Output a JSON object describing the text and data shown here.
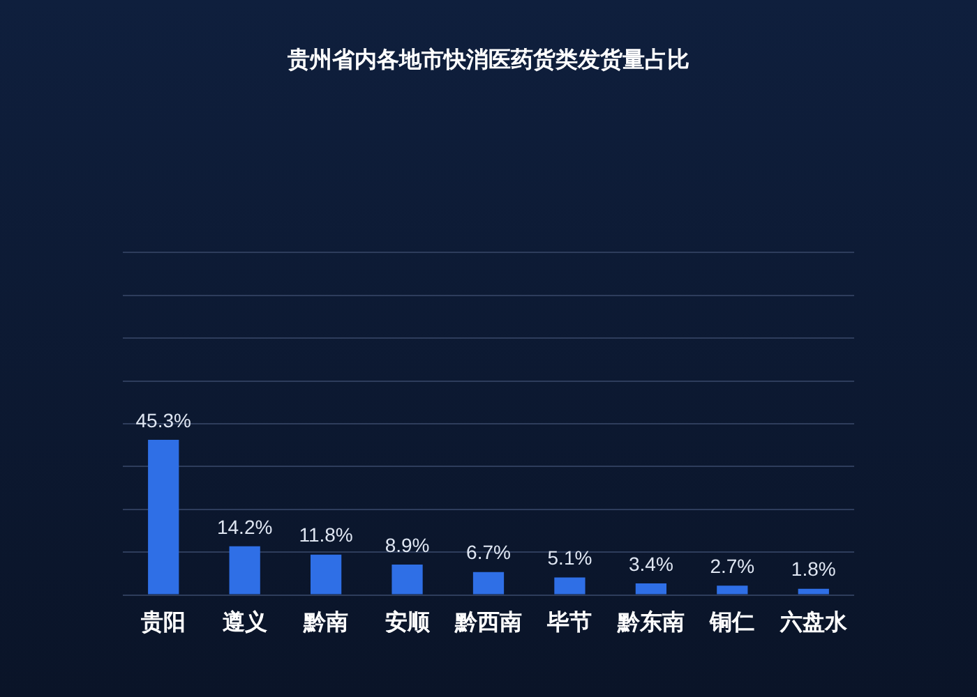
{
  "chart_data": {
    "type": "bar",
    "title": "贵州省内各地市快消医药货类发货量占比",
    "categories": [
      "贵阳",
      "遵义",
      "黔南",
      "安顺",
      "黔西南",
      "毕节",
      "黔东南",
      "铜仁",
      "六盘水"
    ],
    "values": [
      45.3,
      14.2,
      11.8,
      8.9,
      6.7,
      5.1,
      3.4,
      2.7,
      1.8
    ],
    "value_labels": [
      "45.3%",
      "14.2%",
      "11.8%",
      "8.9%",
      "6.7%",
      "5.1%",
      "3.4%",
      "2.7%",
      "1.8%"
    ],
    "color": "#2f6fe6",
    "ylim": [
      0,
      100
    ],
    "yticks": [
      {
        "value": 0,
        "label": null
      },
      {
        "value": 12.5,
        "label": null
      },
      {
        "value": 25,
        "label": null
      },
      {
        "value": 37.5,
        "label": null
      },
      {
        "value": 50,
        "label": null
      },
      {
        "value": 62.5,
        "label": null
      },
      {
        "value": 75,
        "label": null
      },
      {
        "value": 87.5,
        "label": null
      },
      {
        "value": 100,
        "label": null
      }
    ],
    "grid": "y",
    "tick_labels": "x",
    "legend": false
  }
}
